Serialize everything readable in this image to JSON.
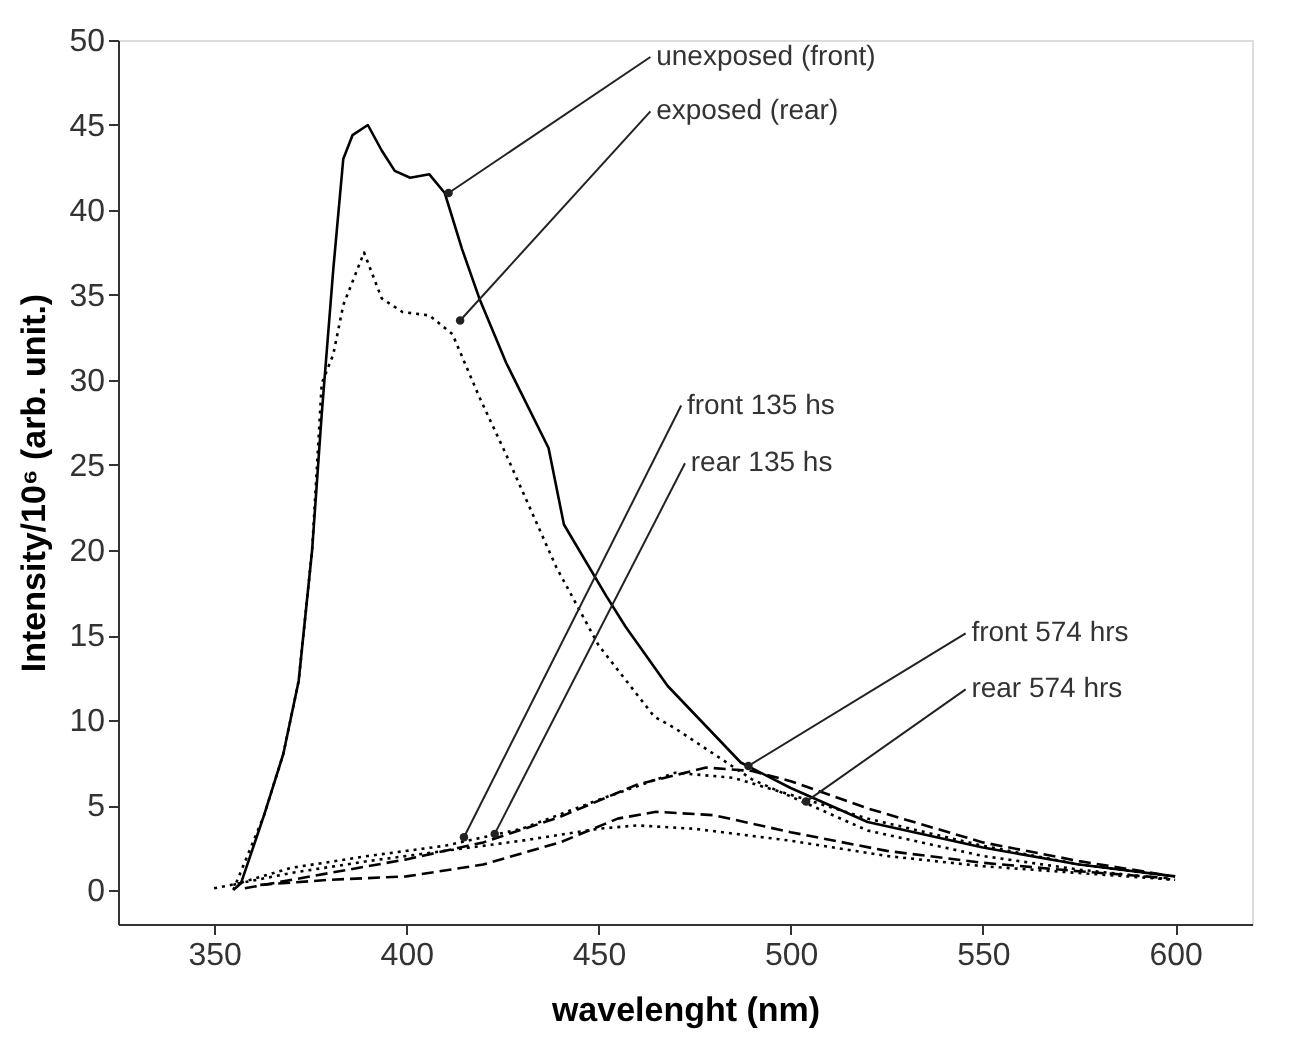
{
  "chart_data": {
    "type": "line",
    "xlabel": "wavelenght (nm)",
    "ylabel": "Intensity/10⁶ (arb. unit.)",
    "xlim": [
      325,
      620
    ],
    "ylim": [
      -2,
      50
    ],
    "xticks": [
      350,
      400,
      450,
      500,
      550,
      600
    ],
    "yticks": [
      0,
      5,
      10,
      15,
      20,
      25,
      30,
      35,
      40,
      45,
      50
    ],
    "grid": false,
    "marker": "none",
    "series": [
      {
        "color": "#000000",
        "line_style": "solid",
        "x": [
          355,
          357,
          363,
          368,
          372,
          375.5,
          378,
          381,
          383.6,
          386,
          390,
          393.6,
          397,
          401,
          406,
          410,
          414.5,
          419,
          426,
          437,
          441,
          452,
          457,
          468,
          487,
          500,
          520,
          550,
          575,
          600
        ],
        "values": [
          0,
          0.4,
          4.4,
          8,
          12.3,
          20,
          28,
          36.5,
          43,
          44.4,
          45,
          43.5,
          42.3,
          41.9,
          42.1,
          41,
          37.7,
          34.8,
          31,
          26,
          21.5,
          17.3,
          15.5,
          12,
          7.5,
          6,
          4,
          2.5,
          1.5,
          0.8
        ]
      },
      {
        "color": "#000000",
        "line_style": "dotted",
        "x": [
          355,
          363,
          368,
          372,
          375.5,
          378,
          381,
          383.6,
          389,
          393.6,
          399,
          406,
          412,
          419,
          426,
          439,
          450,
          464.5,
          470,
          490,
          500,
          520,
          550,
          575,
          600
        ],
        "values": [
          0,
          4.4,
          8,
          12.3,
          20,
          29.8,
          31.5,
          34.4,
          37.5,
          34.8,
          34,
          33.8,
          32.7,
          29,
          25.6,
          19,
          14.4,
          10.2,
          9.5,
          6.5,
          5.5,
          3.5,
          2,
          1.2,
          0.6
        ]
      },
      {
        "color": "#000000",
        "line_style": "dashed",
        "x": [
          362,
          380,
          400,
          420,
          440,
          455,
          465,
          480,
          500,
          525,
          550,
          575,
          598
        ],
        "values": [
          0.3,
          0.6,
          0.8,
          1.5,
          2.8,
          4.2,
          4.6,
          4.4,
          3.4,
          2.3,
          1.6,
          1.1,
          0.7
        ]
      },
      {
        "color": "#000000",
        "line_style": "dotted",
        "x": [
          350,
          370,
          390,
          410,
          430,
          450,
          460,
          475,
          500,
          525,
          550,
          575,
          600
        ],
        "values": [
          0.1,
          1.0,
          1.7,
          2.3,
          2.9,
          3.6,
          3.8,
          3.6,
          2.9,
          2.0,
          1.4,
          1.0,
          0.6
        ]
      },
      {
        "color": "#000000",
        "line_style": "dashed",
        "x": [
          358,
          380,
          400,
          420,
          440,
          460,
          478,
          490,
          500,
          520,
          550,
          575,
          597
        ],
        "values": [
          0.1,
          1.0,
          1.8,
          2.8,
          4.3,
          6.2,
          7.2,
          7.0,
          6.4,
          4.8,
          2.8,
          1.7,
          0.9
        ]
      },
      {
        "color": "#000000",
        "line_style": "dotted",
        "x": [
          355,
          370,
          390,
          410,
          430,
          450,
          470,
          485,
          500,
          520,
          550,
          575,
          600
        ],
        "values": [
          0.3,
          1.3,
          2.0,
          2.6,
          3.6,
          5.3,
          6.9,
          6.6,
          5.6,
          4.2,
          2.6,
          1.5,
          0.8
        ]
      }
    ],
    "annotations": [
      {
        "text": "unexposed (front)",
        "x": 411,
        "y": 41
      },
      {
        "text": "exposed (rear)",
        "x": 414,
        "y": 33.5
      },
      {
        "text": "front 135 hs",
        "x": 415,
        "y": 3.1
      },
      {
        "text": "rear 135 hs",
        "x": 423,
        "y": 3.3
      },
      {
        "text": "front 574 hrs",
        "x": 489,
        "y": 7.3
      },
      {
        "text": "rear 574 hrs",
        "x": 504,
        "y": 5.2
      }
    ]
  }
}
